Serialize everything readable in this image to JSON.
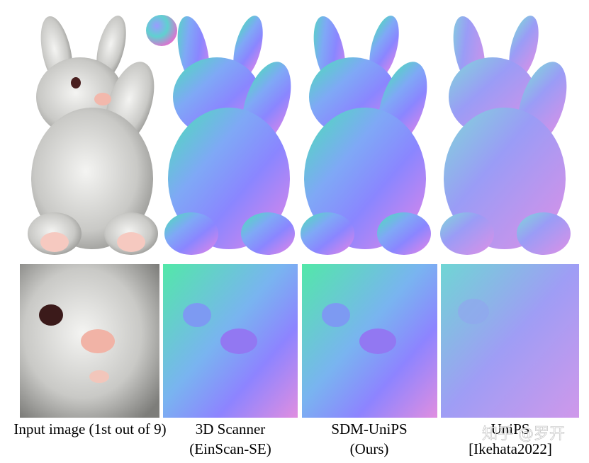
{
  "captions": [
    {
      "line1": "Input image (1st out of 9)"
    },
    {
      "line1": "3D Scanner",
      "line2": "(EinScan-SE)"
    },
    {
      "line1": "SDM-UniPS",
      "line2": "(Ours)"
    },
    {
      "line1": "UniPS",
      "line2": "[Ikehata2022]"
    }
  ],
  "watermark": "知乎 @罗开"
}
